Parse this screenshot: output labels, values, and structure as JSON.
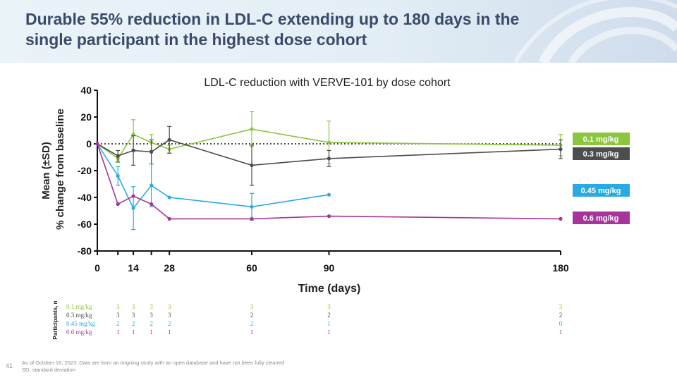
{
  "slide": {
    "title": "Durable 55% reduction in LDL-C extending up to 180 days in the single participant in the highest dose cohort",
    "page_number": "41",
    "footnote_line1": "As of October 16, 2023. Data are from an ongoing study with an open database and have not been fully cleaned",
    "footnote_line2": "SD, standard deviation"
  },
  "chart_data": {
    "type": "line",
    "title": "LDL-C reduction with VERVE-101 by dose cohort",
    "xlabel": "Time (days)",
    "ylabel_line1": "Mean (±SD)",
    "ylabel_line2": "% change from baseline",
    "xticks": [
      "0",
      "14",
      "28",
      "60",
      "90",
      "180"
    ],
    "xtick_values": [
      0,
      14,
      28,
      60,
      90,
      180
    ],
    "yticks": [
      "40",
      "20",
      "0",
      "-20",
      "-40",
      "-60",
      "-80"
    ],
    "ytick_values": [
      40,
      20,
      0,
      -20,
      -40,
      -60,
      -80
    ],
    "xlim": [
      0,
      180
    ],
    "ylim": [
      -80,
      40
    ],
    "reference_line_y": 0,
    "series": [
      {
        "name": "0.1 mg/kg",
        "color": "#8cc63f",
        "points": [
          [
            0,
            0
          ],
          [
            8,
            -11
          ],
          [
            14,
            7
          ],
          [
            21,
            1
          ],
          [
            28,
            -4
          ],
          [
            60,
            11
          ],
          [
            90,
            1
          ],
          [
            180,
            -1
          ]
        ],
        "sd": [
          null,
          3,
          11,
          6,
          3,
          13,
          16,
          8
        ]
      },
      {
        "name": "0.3 mg/kg",
        "color": "#4d4d4d",
        "points": [
          [
            0,
            0
          ],
          [
            8,
            -9
          ],
          [
            14,
            -5
          ],
          [
            21,
            -6
          ],
          [
            28,
            3
          ],
          [
            60,
            -16
          ],
          [
            90,
            -11
          ],
          [
            180,
            -4
          ]
        ],
        "sd": [
          null,
          4,
          11,
          9,
          10,
          15,
          6,
          7
        ]
      },
      {
        "name": "0.45 mg/kg",
        "color": "#29abe2",
        "points": [
          [
            0,
            0
          ],
          [
            8,
            -24
          ],
          [
            14,
            -48
          ],
          [
            21,
            -31
          ],
          [
            28,
            -40
          ],
          [
            60,
            -47
          ],
          [
            90,
            -38
          ]
        ],
        "sd": [
          null,
          7,
          16,
          16,
          null,
          10,
          null
        ]
      },
      {
        "name": "0.6 mg/kg",
        "color": "#a5359a",
        "points": [
          [
            0,
            0
          ],
          [
            8,
            -45
          ],
          [
            14,
            -39
          ],
          [
            21,
            -45
          ],
          [
            28,
            -56
          ],
          [
            60,
            -56
          ],
          [
            90,
            -54
          ],
          [
            180,
            -56
          ]
        ],
        "sd": [
          null,
          null,
          null,
          null,
          null,
          null,
          null,
          null
        ]
      }
    ],
    "participants": {
      "axis_label": "Participants, n",
      "days": [
        8,
        14,
        21,
        28,
        60,
        90,
        180
      ],
      "rows": [
        {
          "label": "0.1 mg/kg",
          "color": "#8cc63f",
          "counts": [
            "3",
            "3",
            "3",
            "3",
            "3",
            "3",
            "3"
          ]
        },
        {
          "label": "0.3 mg/kg",
          "color": "#4d4d4d",
          "counts": [
            "3",
            "3",
            "3",
            "3",
            "2",
            "2",
            "2"
          ]
        },
        {
          "label": "0.45 mg/kg",
          "color": "#29abe2",
          "counts": [
            "2",
            "2",
            "2",
            "2",
            "2",
            "1",
            "0"
          ]
        },
        {
          "label": "0.6 mg/kg",
          "color": "#a5359a",
          "counts": [
            "1",
            "1",
            "1",
            "1",
            "1",
            "1",
            "1"
          ]
        }
      ]
    }
  }
}
